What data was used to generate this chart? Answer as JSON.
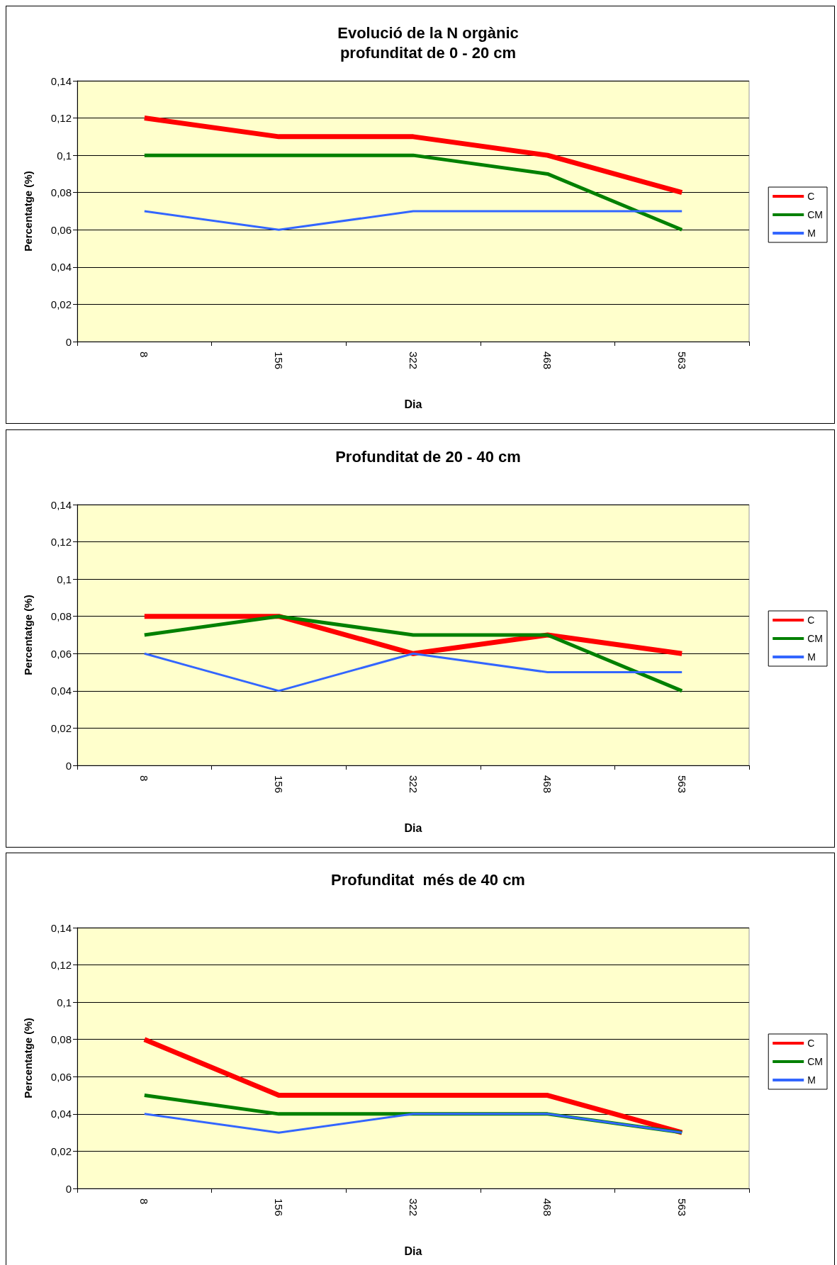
{
  "chart_data": [
    {
      "type": "line",
      "title": "Evolució de la N orgànic\nprofunditat de 0 - 20 cm",
      "xlabel": "Dia",
      "ylabel": "Percentatge (%)",
      "categories": [
        "8",
        "156",
        "322",
        "468",
        "563"
      ],
      "series": [
        {
          "name": "C",
          "color": "#ff0000",
          "values": [
            0.12,
            0.11,
            0.11,
            0.1,
            0.08
          ]
        },
        {
          "name": "CM",
          "color": "#008000",
          "values": [
            0.1,
            0.1,
            0.1,
            0.09,
            0.06
          ]
        },
        {
          "name": "M",
          "color": "#3366ff",
          "values": [
            0.07,
            0.06,
            0.07,
            0.07,
            0.07
          ]
        }
      ],
      "ylim": [
        0,
        0.14
      ],
      "yticks": [
        {
          "value": 0,
          "label": "0"
        },
        {
          "value": 0.02,
          "label": "0,02"
        },
        {
          "value": 0.04,
          "label": "0,04"
        },
        {
          "value": 0.06,
          "label": "0,06"
        },
        {
          "value": 0.08,
          "label": "0,08"
        },
        {
          "value": 0.1,
          "label": "0,1"
        },
        {
          "value": 0.12,
          "label": "0,12"
        },
        {
          "value": 0.14,
          "label": "0,14"
        }
      ],
      "grid": "y",
      "legend": "right",
      "line_style": "solid"
    },
    {
      "type": "line",
      "title": "Profunditat de 20 - 40 cm",
      "xlabel": "Dia",
      "ylabel": "Percentatge (%)",
      "categories": [
        "8",
        "156",
        "322",
        "468",
        "563"
      ],
      "series": [
        {
          "name": "C",
          "color": "#ff0000",
          "values": [
            0.08,
            0.08,
            0.06,
            0.07,
            0.06
          ]
        },
        {
          "name": "CM",
          "color": "#008000",
          "values": [
            0.07,
            0.08,
            0.07,
            0.07,
            0.04
          ]
        },
        {
          "name": "M",
          "color": "#3366ff",
          "values": [
            0.06,
            0.04,
            0.06,
            0.05,
            0.05
          ]
        }
      ],
      "ylim": [
        0,
        0.14
      ],
      "yticks": [
        {
          "value": 0,
          "label": "0"
        },
        {
          "value": 0.02,
          "label": "0,02"
        },
        {
          "value": 0.04,
          "label": "0,04"
        },
        {
          "value": 0.06,
          "label": "0,06"
        },
        {
          "value": 0.08,
          "label": "0,08"
        },
        {
          "value": 0.1,
          "label": "0,1"
        },
        {
          "value": 0.12,
          "label": "0,12"
        },
        {
          "value": 0.14,
          "label": "0,14"
        }
      ],
      "grid": "y",
      "legend": "right",
      "line_style": "solid"
    },
    {
      "type": "line",
      "title": "Profunditat  més de 40 cm",
      "xlabel": "Dia",
      "ylabel": "Percentatge (%)",
      "categories": [
        "8",
        "156",
        "322",
        "468",
        "563"
      ],
      "series": [
        {
          "name": "C",
          "color": "#ff0000",
          "values": [
            0.08,
            0.05,
            0.05,
            0.05,
            0.03
          ]
        },
        {
          "name": "CM",
          "color": "#008000",
          "values": [
            0.05,
            0.04,
            0.04,
            0.04,
            0.03
          ]
        },
        {
          "name": "M",
          "color": "#3366ff",
          "values": [
            0.04,
            0.03,
            0.04,
            0.04,
            0.03
          ]
        }
      ],
      "ylim": [
        0,
        0.14
      ],
      "yticks": [
        {
          "value": 0,
          "label": "0"
        },
        {
          "value": 0.02,
          "label": "0,02"
        },
        {
          "value": 0.04,
          "label": "0,04"
        },
        {
          "value": 0.06,
          "label": "0,06"
        },
        {
          "value": 0.08,
          "label": "0,08"
        },
        {
          "value": 0.1,
          "label": "0,1"
        },
        {
          "value": 0.12,
          "label": "0,12"
        },
        {
          "value": 0.14,
          "label": "0,14"
        }
      ],
      "grid": "y",
      "legend": "right",
      "line_style": "solid"
    }
  ]
}
